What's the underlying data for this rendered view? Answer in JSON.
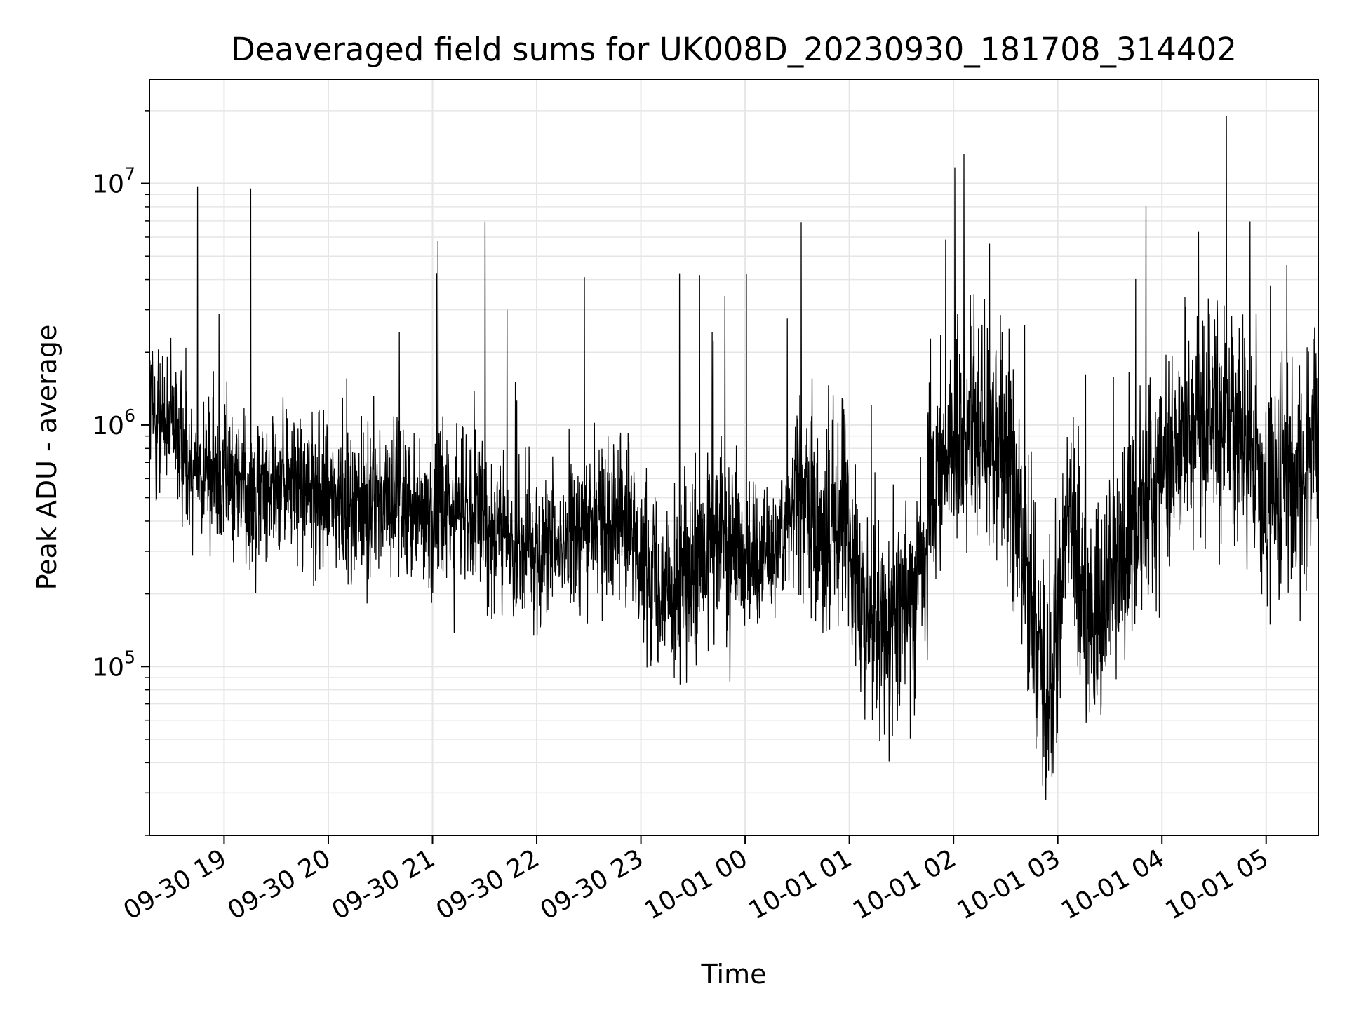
{
  "chart_data": {
    "type": "line",
    "title": "Deaveraged field sums for UK008D_20230930_181708_314402",
    "xlabel": "Time",
    "ylabel": "Peak ADU - average",
    "yscale": "log",
    "ylim": [
      20000,
      27000000
    ],
    "xlim": [
      "2023-09-30 18:17",
      "2023-10-01 05:30"
    ],
    "grid": true,
    "line_color": "#000000",
    "grid_color": "#e6e6e6",
    "y_ticks": [
      {
        "value": 100000,
        "base": "10",
        "exp": "5"
      },
      {
        "value": 1000000,
        "base": "10",
        "exp": "6"
      },
      {
        "value": 10000000,
        "base": "10",
        "exp": "7"
      }
    ],
    "x_ticks": [
      {
        "time": "2023-09-30 19:00",
        "label": "09-30 19"
      },
      {
        "time": "2023-09-30 20:00",
        "label": "09-30 20"
      },
      {
        "time": "2023-09-30 21:00",
        "label": "09-30 21"
      },
      {
        "time": "2023-09-30 22:00",
        "label": "09-30 22"
      },
      {
        "time": "2023-09-30 23:00",
        "label": "09-30 23"
      },
      {
        "time": "2023-10-01 00:00",
        "label": "10-01 00"
      },
      {
        "time": "2023-10-01 01:00",
        "label": "10-01 01"
      },
      {
        "time": "2023-10-01 02:00",
        "label": "10-01 02"
      },
      {
        "time": "2023-10-01 03:00",
        "label": "10-01 03"
      },
      {
        "time": "2023-10-01 04:00",
        "label": "10-01 04"
      },
      {
        "time": "2023-10-01 05:00",
        "label": "10-01 05"
      }
    ],
    "series": [
      {
        "values": [
          [
            "2023-09-30 18:17",
            1200000
          ],
          [
            "2023-09-30 18:30",
            900000
          ],
          [
            "2023-09-30 18:45",
            700000
          ],
          [
            "2023-09-30 19:00",
            600000
          ],
          [
            "2023-09-30 19:15",
            550000
          ],
          [
            "2023-09-30 19:30",
            600000
          ],
          [
            "2023-09-30 19:45",
            550000
          ],
          [
            "2023-09-30 20:00",
            500000
          ],
          [
            "2023-09-30 20:15",
            450000
          ],
          [
            "2023-09-30 20:30",
            500000
          ],
          [
            "2023-09-30 20:45",
            500000
          ],
          [
            "2023-09-30 21:00",
            450000
          ],
          [
            "2023-09-30 21:15",
            450000
          ],
          [
            "2023-09-30 21:30",
            420000
          ],
          [
            "2023-09-30 21:45",
            300000
          ],
          [
            "2023-09-30 22:00",
            300000
          ],
          [
            "2023-09-30 22:15",
            320000
          ],
          [
            "2023-09-30 22:30",
            400000
          ],
          [
            "2023-09-30 22:45",
            450000
          ],
          [
            "2023-09-30 23:00",
            300000
          ],
          [
            "2023-09-30 23:15",
            220000
          ],
          [
            "2023-09-30 23:30",
            220000
          ],
          [
            "2023-09-30 23:45",
            350000
          ],
          [
            "2023-10-01 00:00",
            300000
          ],
          [
            "2023-10-01 00:15",
            300000
          ],
          [
            "2023-10-01 00:30",
            500000
          ],
          [
            "2023-10-01 00:45",
            350000
          ],
          [
            "2023-10-01 01:00",
            400000
          ],
          [
            "2023-10-01 01:10",
            150000
          ],
          [
            "2023-10-01 01:20",
            150000
          ],
          [
            "2023-10-01 01:35",
            200000
          ],
          [
            "2023-10-01 01:50",
            500000
          ],
          [
            "2023-10-01 02:00",
            900000
          ],
          [
            "2023-10-01 02:15",
            1000000
          ],
          [
            "2023-10-01 02:30",
            800000
          ],
          [
            "2023-10-01 02:45",
            200000
          ],
          [
            "2023-10-01 02:55",
            60000
          ],
          [
            "2023-10-01 03:05",
            400000
          ],
          [
            "2023-10-01 03:20",
            150000
          ],
          [
            "2023-10-01 03:35",
            250000
          ],
          [
            "2023-10-01 03:50",
            500000
          ],
          [
            "2023-10-01 04:00",
            700000
          ],
          [
            "2023-10-01 04:15",
            1000000
          ],
          [
            "2023-10-01 04:30",
            1200000
          ],
          [
            "2023-10-01 04:45",
            1000000
          ],
          [
            "2023-10-01 05:00",
            500000
          ],
          [
            "2023-10-01 05:15",
            600000
          ],
          [
            "2023-10-01 05:30",
            800000
          ]
        ]
      }
    ]
  }
}
